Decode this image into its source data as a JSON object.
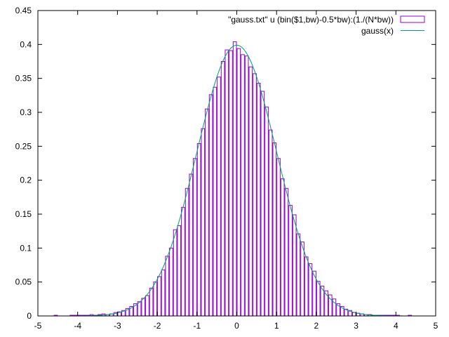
{
  "chart_data": {
    "type": "bar",
    "title": "",
    "xlabel": "",
    "ylabel": "",
    "xlim": [
      -5,
      5
    ],
    "ylim": [
      0,
      0.45
    ],
    "grid": false,
    "legend_position": "top-right",
    "x_ticks": [
      -5,
      -4,
      -3,
      -2,
      -1,
      0,
      1,
      2,
      3,
      4,
      5
    ],
    "x_tick_labels": [
      "-5",
      "-4",
      "-3",
      "-2",
      "-1",
      "0",
      "1",
      "2",
      "3",
      "4",
      "5"
    ],
    "y_ticks": [
      0,
      0.05,
      0.1,
      0.15,
      0.2,
      0.25,
      0.3,
      0.35,
      0.4,
      0.45
    ],
    "y_tick_labels": [
      "0",
      "0.05",
      "0.1",
      "0.15",
      "0.2",
      "0.25",
      "0.3",
      "0.35",
      "0.4",
      "0.45"
    ],
    "series": [
      {
        "name": "\"gauss.txt\" u (bin($1,bw)-0.5*bw):(1./(N*bw))",
        "kind": "histogram",
        "color": "#9400d3",
        "bin_width": 0.1,
        "bin_starts": [
          -4.6,
          -4.2,
          -4.1,
          -4.0,
          -3.9,
          -3.8,
          -3.7,
          -3.6,
          -3.5,
          -3.4,
          -3.3,
          -3.2,
          -3.1,
          -3.0,
          -2.9,
          -2.8,
          -2.7,
          -2.6,
          -2.5,
          -2.4,
          -2.3,
          -2.2,
          -2.1,
          -2.0,
          -1.9,
          -1.8,
          -1.7,
          -1.6,
          -1.5,
          -1.4,
          -1.3,
          -1.2,
          -1.1,
          -1.0,
          -0.9,
          -0.8,
          -0.7,
          -0.6,
          -0.5,
          -0.4,
          -0.3,
          -0.2,
          -0.1,
          0.0,
          0.1,
          0.2,
          0.3,
          0.4,
          0.5,
          0.6,
          0.7,
          0.8,
          0.9,
          1.0,
          1.1,
          1.2,
          1.3,
          1.4,
          1.5,
          1.6,
          1.7,
          1.8,
          1.9,
          2.0,
          2.1,
          2.2,
          2.3,
          2.4,
          2.5,
          2.6,
          2.7,
          2.8,
          2.9,
          3.0,
          3.1,
          3.2,
          3.3,
          3.4,
          3.5,
          3.6,
          3.7,
          3.8,
          3.9,
          4.0,
          4.3
        ],
        "values": [
          0.001,
          0.001,
          0.001,
          0.001,
          0.001,
          0.001,
          0.002,
          0.001,
          0.002,
          0.003,
          0.002,
          0.003,
          0.005,
          0.006,
          0.008,
          0.011,
          0.014,
          0.018,
          0.021,
          0.026,
          0.03,
          0.041,
          0.05,
          0.058,
          0.068,
          0.088,
          0.1,
          0.127,
          0.133,
          0.16,
          0.188,
          0.209,
          0.232,
          0.254,
          0.276,
          0.305,
          0.326,
          0.337,
          0.352,
          0.375,
          0.392,
          0.391,
          0.404,
          0.394,
          0.385,
          0.383,
          0.367,
          0.357,
          0.343,
          0.331,
          0.308,
          0.274,
          0.255,
          0.232,
          0.202,
          0.188,
          0.163,
          0.149,
          0.121,
          0.109,
          0.087,
          0.077,
          0.066,
          0.051,
          0.044,
          0.037,
          0.031,
          0.025,
          0.018,
          0.014,
          0.01,
          0.008,
          0.005,
          0.004,
          0.003,
          0.002,
          0.002,
          0.001,
          0.001,
          0.001,
          0.001,
          0.001,
          0.001,
          0.001,
          0.001
        ]
      },
      {
        "name": "gauss(x)",
        "kind": "line",
        "color": "#009e73",
        "function": "exp(-x^2/2)/sqrt(2*pi)"
      }
    ]
  }
}
